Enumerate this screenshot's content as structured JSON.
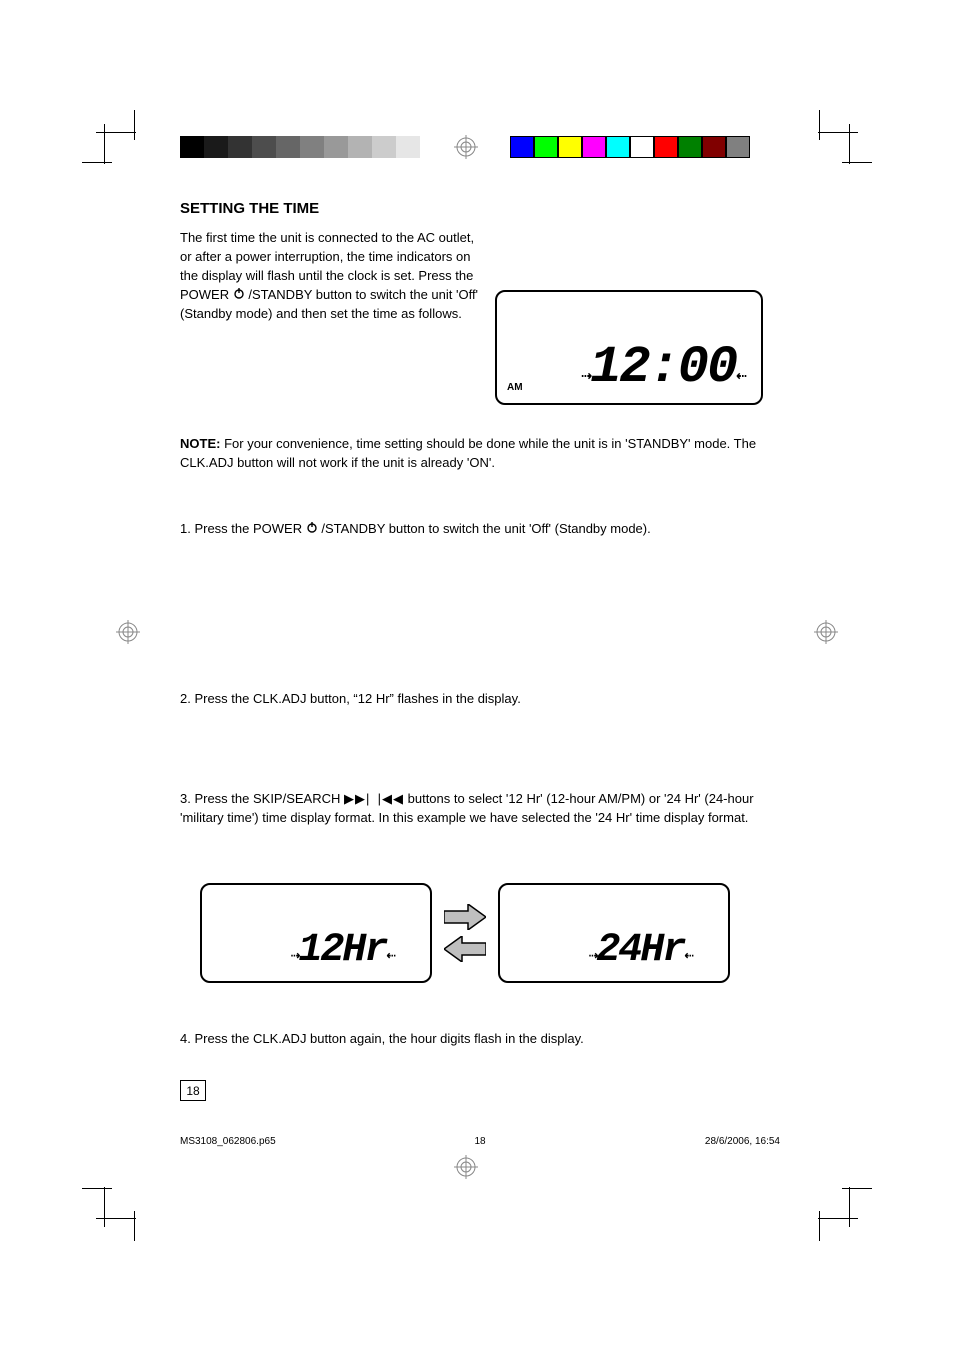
{
  "header": {
    "title": "SETTING THE TIME",
    "gray_swatches": [
      "#000000",
      "#1a1a1a",
      "#333333",
      "#4d4d4d",
      "#666666",
      "#808080",
      "#999999",
      "#b3b3b3",
      "#cccccc",
      "#e6e6e6",
      "#ffffff"
    ],
    "color_swatches": [
      "#0000ff",
      "#00ff00",
      "#ffff00",
      "#ff00ff",
      "#00ffff",
      "#ffffff",
      "#ff0000",
      "#008000",
      "#800000",
      "#808080"
    ]
  },
  "intro": {
    "p1a": "The first time the unit is connected to the AC outlet, or after a power interruption, the time indicators on the display will flash until the clock is set. Press the POWER ",
    "p1b": " /STANDBY button to switch the unit 'Off' (Standby mode) and then set the time as follows."
  },
  "lcd_main": {
    "am_label": "AM",
    "time": "12:00"
  },
  "note": {
    "label": "NOTE:",
    "text": " For your convenience, time setting should be done while the unit is in 'STANDBY' mode. The CLK.ADJ button will not work if the unit is already 'ON'."
  },
  "step1": {
    "p1a": "1. Press the POWER ",
    "p1b": " /STANDBY button to switch the unit 'Off' (Standby mode)."
  },
  "step2": {
    "p1": "2. Press the CLK.ADJ button, “12 Hr” flashes in the display."
  },
  "step3": {
    "p1a": "3. Press the SKIP/SEARCH ",
    "p1b": " buttons to select '12 Hr' (12-hour AM/PM) or '24 Hr' (24-hour 'military time') time display format. In this example we have selected the '24 Hr' time display format."
  },
  "dual_lcd": {
    "left_text": "12Hr",
    "right_text": "24Hr"
  },
  "step4": {
    "p1": "4. Press the CLK.ADJ button again, the hour digits flash in the display."
  },
  "pagenum": "18",
  "footer": {
    "left": "MS3108_062806.p65",
    "mid": "18",
    "right": "28/6/2006, 16:54"
  }
}
